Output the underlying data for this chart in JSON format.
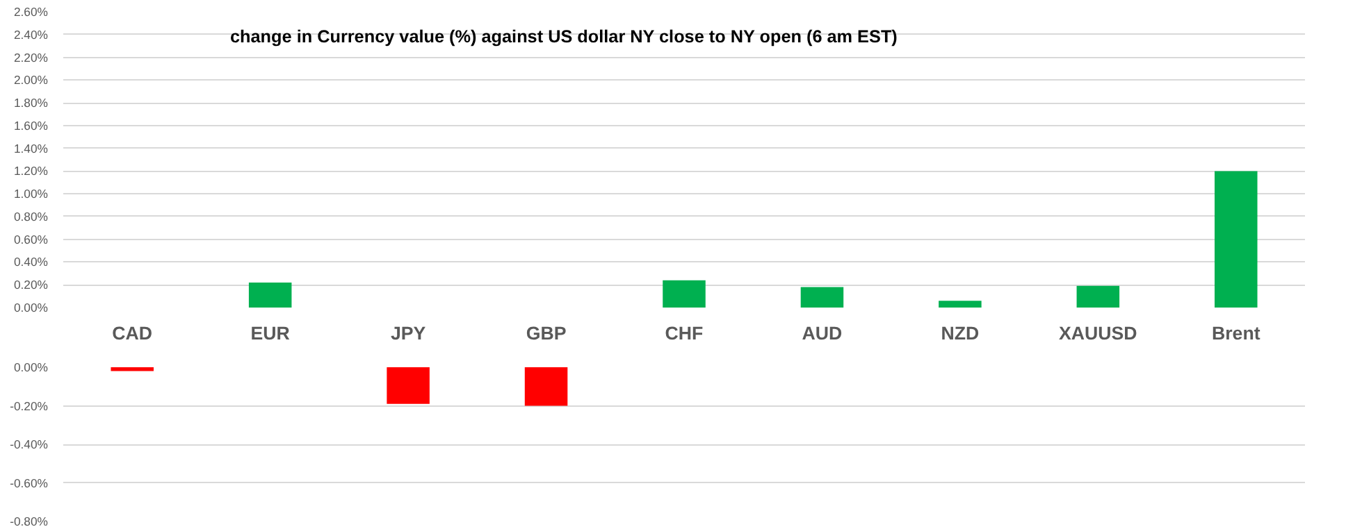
{
  "chart_data": [
    {
      "type": "bar",
      "title": "change in Currency value (%)  against US dollar NY  close to NY open (6 am EST)",
      "categories": [
        "CAD",
        "EUR",
        "JPY",
        "GBP",
        "CHF",
        "AUD",
        "NZD",
        "XAUUSD",
        "Brent"
      ],
      "series": [
        {
          "color": "#00b050",
          "values": [
            null,
            0.22,
            null,
            null,
            0.24,
            0.18,
            0.06,
            0.19,
            1.2
          ]
        }
      ],
      "ylim": [
        0,
        2.6
      ],
      "yticks": [
        {
          "value": 0,
          "label": "0.00%"
        },
        {
          "value": 0.2,
          "label": "0.20%"
        },
        {
          "value": 0.4,
          "label": "0.40%"
        },
        {
          "value": 0.6,
          "label": "0.60%"
        },
        {
          "value": 0.8,
          "label": "0.80%"
        },
        {
          "value": 1.0,
          "label": "1.00%"
        },
        {
          "value": 1.2,
          "label": "1.20%"
        },
        {
          "value": 1.4,
          "label": "1.40%"
        },
        {
          "value": 1.6,
          "label": "1.60%"
        },
        {
          "value": 1.8,
          "label": "1.80%"
        },
        {
          "value": 2.0,
          "label": "2.00%"
        },
        {
          "value": 2.2,
          "label": "2.20%"
        },
        {
          "value": 2.4,
          "label": "2.40%"
        },
        {
          "value": 2.6,
          "label": "2.60%"
        }
      ],
      "grid": "y"
    },
    {
      "type": "bar",
      "categories": [
        null,
        null,
        null,
        null,
        null,
        null,
        null,
        null,
        null
      ],
      "series": [
        {
          "color": "#ff0000",
          "values": [
            -0.02,
            null,
            -0.19,
            -0.2,
            null,
            null,
            null,
            null,
            null
          ]
        }
      ],
      "ylim": [
        -0.8,
        0
      ],
      "yticks": [
        {
          "value": 0,
          "label": "0.00%"
        },
        {
          "value": -0.2,
          "label": "-0.20%"
        },
        {
          "value": -0.4,
          "label": "-0.40%"
        },
        {
          "value": -0.6,
          "label": "-0.60%"
        },
        {
          "value": -0.8,
          "label": "-0.80%"
        }
      ],
      "grid": "y",
      "tick_labels": "y"
    }
  ]
}
